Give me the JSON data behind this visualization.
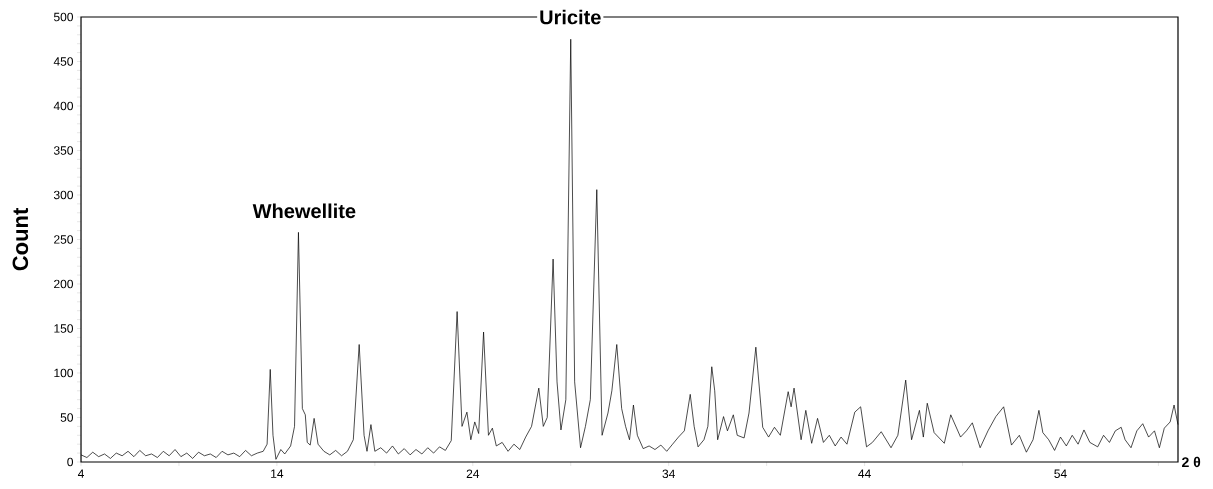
{
  "chart_data": {
    "type": "line",
    "ylabel": "Count",
    "xlabel": "2 θ",
    "xlim": [
      4,
      60
    ],
    "ylim": [
      0,
      500
    ],
    "xticks": [
      4,
      {
        "value": 9,
        "label": null
      },
      14,
      {
        "value": 19,
        "label": null
      },
      24,
      {
        "value": 29,
        "label": null
      },
      34,
      {
        "value": 39,
        "label": null
      },
      44,
      {
        "value": 49,
        "label": null
      },
      54,
      {
        "value": 59,
        "label": null
      }
    ],
    "yticks": [
      0,
      {
        "value": 10,
        "label": null
      },
      {
        "value": 20,
        "label": null
      },
      {
        "value": 30,
        "label": null
      },
      {
        "value": 40,
        "label": null
      },
      50,
      {
        "value": 60,
        "label": null
      },
      {
        "value": 70,
        "label": null
      },
      {
        "value": 80,
        "label": null
      },
      {
        "value": 90,
        "label": null
      },
      100,
      {
        "value": 110,
        "label": null
      },
      {
        "value": 120,
        "label": null
      },
      {
        "value": 130,
        "label": null
      },
      {
        "value": 140,
        "label": null
      },
      150,
      {
        "value": 160,
        "label": null
      },
      {
        "value": 170,
        "label": null
      },
      {
        "value": 180,
        "label": null
      },
      {
        "value": 190,
        "label": null
      },
      200,
      {
        "value": 210,
        "label": null
      },
      {
        "value": 220,
        "label": null
      },
      {
        "value": 230,
        "label": null
      },
      {
        "value": 240,
        "label": null
      },
      250,
      {
        "value": 260,
        "label": null
      },
      {
        "value": 270,
        "label": null
      },
      {
        "value": 280,
        "label": null
      },
      {
        "value": 290,
        "label": null
      },
      300,
      {
        "value": 310,
        "label": null
      },
      {
        "value": 320,
        "label": null
      },
      {
        "value": 330,
        "label": null
      },
      {
        "value": 340,
        "label": null
      },
      350,
      {
        "value": 360,
        "label": null
      },
      {
        "value": 370,
        "label": null
      },
      {
        "value": 380,
        "label": null
      },
      {
        "value": 390,
        "label": null
      },
      400,
      {
        "value": 410,
        "label": null
      },
      {
        "value": 420,
        "label": null
      },
      {
        "value": 430,
        "label": null
      },
      {
        "value": 440,
        "label": null
      },
      450,
      {
        "value": 460,
        "label": null
      },
      {
        "value": 470,
        "label": null
      },
      {
        "value": 480,
        "label": null
      },
      {
        "value": 490,
        "label": null
      },
      500
    ],
    "grid": false,
    "marker": "none",
    "line_style": "solid",
    "annotations": [
      "Whewellite",
      "Uricite"
    ],
    "series": [
      {
        "color": "#000000",
        "x": [
          4.0,
          4.3,
          4.6,
          4.9,
          5.2,
          5.5,
          5.8,
          6.1,
          6.4,
          6.7,
          7.0,
          7.3,
          7.6,
          7.9,
          8.2,
          8.5,
          8.8,
          9.1,
          9.4,
          9.7,
          10.0,
          10.3,
          10.6,
          10.9,
          11.2,
          11.5,
          11.8,
          12.1,
          12.4,
          12.7,
          13.0,
          13.3,
          13.5,
          13.66,
          13.8,
          13.95,
          14.2,
          14.4,
          14.7,
          14.9,
          15.1,
          15.3,
          15.45,
          15.55,
          15.7,
          15.9,
          16.1,
          16.4,
          16.7,
          17.0,
          17.3,
          17.6,
          17.9,
          18.2,
          18.45,
          18.6,
          18.8,
          19.0,
          19.3,
          19.6,
          19.9,
          20.2,
          20.5,
          20.8,
          21.1,
          21.4,
          21.7,
          22.0,
          22.3,
          22.6,
          22.9,
          23.2,
          23.45,
          23.7,
          23.9,
          24.1,
          24.3,
          24.55,
          24.8,
          25.0,
          25.2,
          25.5,
          25.8,
          26.1,
          26.4,
          26.7,
          27.0,
          27.37,
          27.6,
          27.8,
          28.1,
          28.3,
          28.5,
          28.75,
          29.0,
          29.2,
          29.5,
          29.75,
          30.0,
          30.33,
          30.6,
          30.9,
          31.1,
          31.35,
          31.6,
          31.8,
          32.0,
          32.2,
          32.4,
          32.7,
          33.0,
          33.3,
          33.6,
          33.9,
          34.2,
          34.5,
          34.8,
          35.1,
          35.3,
          35.5,
          35.8,
          36.0,
          36.2,
          36.35,
          36.5,
          36.8,
          37.0,
          37.3,
          37.5,
          37.85,
          38.1,
          38.45,
          38.8,
          39.1,
          39.4,
          39.7,
          40.1,
          40.25,
          40.4,
          40.76,
          41.0,
          41.3,
          41.6,
          41.9,
          42.2,
          42.5,
          42.8,
          43.1,
          43.5,
          43.8,
          44.1,
          44.4,
          44.85,
          45.1,
          45.35,
          45.7,
          46.1,
          46.4,
          46.8,
          47.0,
          47.2,
          47.55,
          48.07,
          48.4,
          48.9,
          49.2,
          49.5,
          49.9,
          50.3,
          50.7,
          51.1,
          51.5,
          51.9,
          52.26,
          52.6,
          52.9,
          53.1,
          53.4,
          53.7,
          54.0,
          54.3,
          54.6,
          54.9,
          55.2,
          55.5,
          55.9,
          56.2,
          56.5,
          56.8,
          57.1,
          57.3,
          57.6,
          57.9,
          58.2,
          58.5,
          58.8,
          59.05,
          59.3,
          59.6,
          59.8,
          60.0
        ],
        "values": [
          8,
          5,
          11,
          6,
          9,
          4,
          10,
          7,
          12,
          6,
          13,
          7,
          9,
          5,
          12,
          7,
          14,
          6,
          10,
          4,
          11,
          7,
          9,
          5,
          12,
          8,
          10,
          6,
          13,
          7,
          10,
          12,
          20,
          104,
          30,
          3,
          14,
          9,
          18,
          40,
          258,
          60,
          53,
          22,
          19,
          49,
          20,
          12,
          8,
          13,
          7,
          12,
          25,
          132,
          30,
          12,
          42,
          12,
          16,
          10,
          18,
          9,
          15,
          8,
          14,
          9,
          16,
          10,
          17,
          13,
          24,
          169,
          40,
          56,
          25,
          45,
          32,
          146,
          30,
          38,
          18,
          22,
          12,
          20,
          14,
          28,
          40,
          83,
          40,
          50,
          228,
          90,
          36,
          70,
          475,
          90,
          16,
          40,
          70,
          306,
          30,
          55,
          80,
          132,
          60,
          40,
          25,
          64,
          30,
          15,
          18,
          14,
          19,
          12,
          20,
          28,
          35,
          76,
          40,
          17,
          25,
          40,
          107,
          80,
          25,
          51,
          35,
          53,
          30,
          27,
          55,
          129,
          39,
          28,
          39,
          30,
          79,
          62,
          83,
          25,
          58,
          21,
          49,
          22,
          30,
          18,
          28,
          20,
          56,
          62,
          17,
          22,
          34,
          25,
          16,
          30,
          92,
          25,
          58,
          28,
          66,
          33,
          21,
          53,
          28,
          35,
          44,
          16,
          35,
          51,
          62,
          19,
          30,
          11,
          25,
          58,
          33,
          25,
          13,
          28,
          18,
          30,
          20,
          36,
          22,
          17,
          30,
          22,
          35,
          39,
          25,
          16,
          35,
          43,
          28,
          35,
          16,
          38,
          45,
          64,
          42
        ]
      }
    ]
  }
}
